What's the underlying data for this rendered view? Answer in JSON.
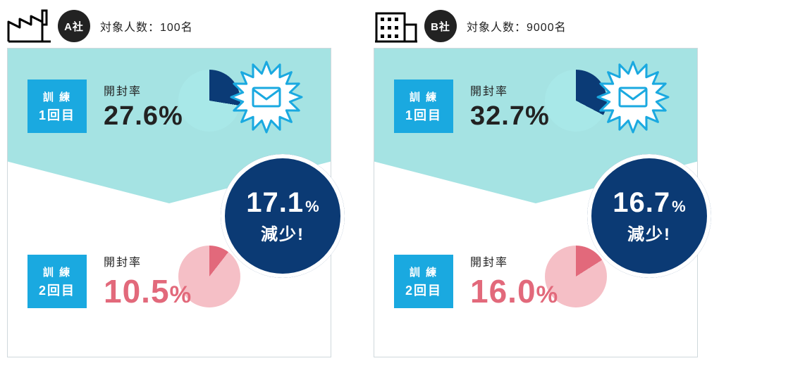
{
  "colors": {
    "navy": "#0b3a74",
    "cyan": "#1aa9e0",
    "cyan_light": "#a5e3e3",
    "pink": "#f5bfc6",
    "red": "#e2697b",
    "black": "#222222",
    "white": "#ffffff",
    "border": "#cfd8dc"
  },
  "labels": {
    "train": "訓 練",
    "round1": "1回目",
    "round2": "2回目",
    "openrate": "開封率",
    "reduce": "減少!",
    "target_prefix": "対象人数："
  },
  "companies": [
    {
      "id": "A",
      "badge": "A社",
      "target": "100名",
      "building": "factory",
      "round1_pct": 27.6,
      "round1_display": "27.6%",
      "round2_pct": 10.5,
      "round2_num": "10.5",
      "reduce_num": "17.1",
      "reduce_unit": "%"
    },
    {
      "id": "B",
      "badge": "B社",
      "target": "9000名",
      "building": "office",
      "round1_pct": 32.7,
      "round1_display": "32.7%",
      "round2_pct": 16.0,
      "round2_num": "16.0",
      "reduce_num": "16.7",
      "reduce_unit": "%"
    }
  ]
}
